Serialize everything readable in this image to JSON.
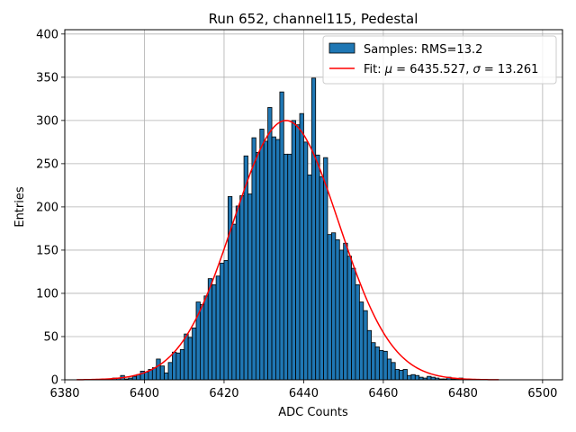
{
  "chart_data": {
    "type": "bar",
    "title": "Run 652, channel115, Pedestal",
    "xlabel": "ADC Counts",
    "ylabel": "Entries",
    "xlim": [
      6380,
      6505
    ],
    "ylim": [
      0,
      405
    ],
    "xticks": [
      6380,
      6400,
      6420,
      6440,
      6460,
      6480,
      6500
    ],
    "yticks": [
      0,
      50,
      100,
      150,
      200,
      250,
      300,
      350,
      400
    ],
    "grid": true,
    "legend_position": "top-right",
    "bin_width": 1,
    "histogram": {
      "name": "Samples: RMS=13.2",
      "color": "#1f77b4",
      "edge_color": "#000000",
      "bins": [
        6391,
        6392,
        6393,
        6394,
        6395,
        6396,
        6397,
        6398,
        6399,
        6400,
        6401,
        6402,
        6403,
        6404,
        6405,
        6406,
        6407,
        6408,
        6409,
        6410,
        6411,
        6412,
        6413,
        6414,
        6415,
        6416,
        6417,
        6418,
        6419,
        6420,
        6421,
        6422,
        6423,
        6424,
        6425,
        6426,
        6427,
        6428,
        6429,
        6430,
        6431,
        6432,
        6433,
        6434,
        6435,
        6436,
        6437,
        6438,
        6439,
        6440,
        6441,
        6442,
        6443,
        6444,
        6445,
        6446,
        6447,
        6448,
        6449,
        6450,
        6451,
        6452,
        6453,
        6454,
        6455,
        6456,
        6457,
        6458,
        6459,
        6460,
        6461,
        6462,
        6463,
        6464,
        6465,
        6466,
        6467,
        6468,
        6469,
        6470,
        6471,
        6472,
        6473,
        6474,
        6475,
        6476,
        6477,
        6478,
        6479
      ],
      "counts": [
        1,
        2,
        2,
        5,
        1,
        2,
        4,
        6,
        10,
        9,
        12,
        14,
        24,
        16,
        8,
        20,
        32,
        31,
        35,
        53,
        49,
        60,
        90,
        87,
        97,
        117,
        110,
        120,
        135,
        138,
        212,
        180,
        201,
        213,
        259,
        215,
        280,
        263,
        290,
        276,
        315,
        281,
        278,
        333,
        261,
        261,
        300,
        295,
        308,
        275,
        237,
        349,
        260,
        235,
        257,
        168,
        170,
        162,
        150,
        158,
        143,
        129,
        110,
        90,
        80,
        57,
        43,
        38,
        34,
        33,
        24,
        20,
        12,
        11,
        12,
        5,
        6,
        5,
        3,
        2,
        4,
        3,
        2,
        1,
        1,
        3,
        1,
        1,
        2
      ]
    },
    "fit": {
      "name": "Fit: μ = 6435.527, σ = 13.261",
      "color": "#ff0000",
      "mu": 6435.527,
      "sigma": 13.261,
      "amplitude": 300,
      "x_range": [
        6383,
        6489
      ]
    }
  }
}
